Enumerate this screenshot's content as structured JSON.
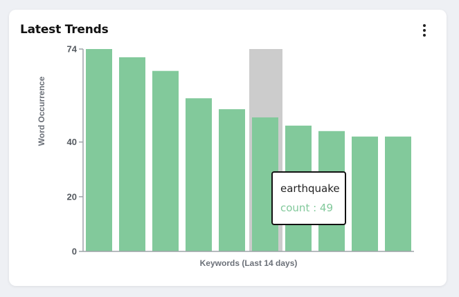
{
  "card": {
    "title": "Latest Trends",
    "menu_icon": "more-vertical-icon"
  },
  "colors": {
    "bar": "#82c99b",
    "highlight": "#cccccc",
    "axis": "#9ea3a8",
    "tooltip_value": "#82c99b"
  },
  "chart_data": {
    "type": "bar",
    "title": "",
    "xlabel": "Keywords (Last 14 days)",
    "ylabel": "Word Occurrence",
    "ylim": [
      0,
      74
    ],
    "yticks": [
      0,
      20,
      40,
      74
    ],
    "grid": false,
    "categories": [
      "",
      "",
      "",
      "",
      "",
      "earthquake",
      "",
      "",
      "",
      ""
    ],
    "values": [
      74,
      71,
      66,
      56,
      52,
      49,
      46,
      44,
      42,
      42
    ],
    "highlight_index": 5
  },
  "tooltip": {
    "title": "earthquake",
    "value_label": "count : 49"
  }
}
